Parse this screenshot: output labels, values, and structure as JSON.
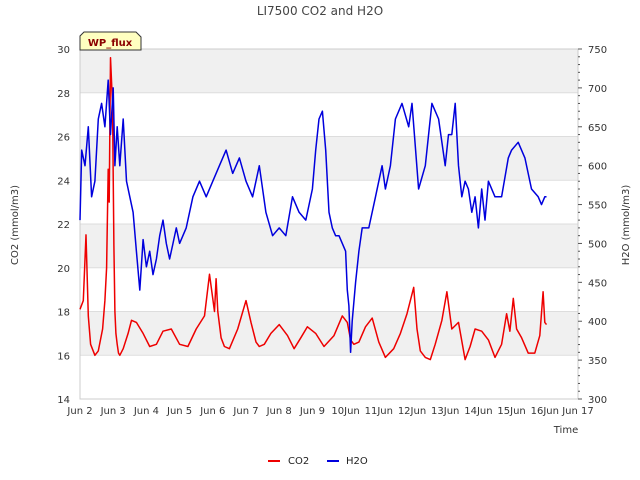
{
  "chart_data": {
    "type": "line",
    "title": "LI7500 CO2 and H2O",
    "xlabel": "Time",
    "ylabel_left": "CO2 (mmol/m3)",
    "ylabel_right": "H2O (mmol/m3)",
    "badge": "WP_flux",
    "x_range": [
      2,
      17
    ],
    "ylim_left": [
      14,
      30
    ],
    "ylim_right": [
      300,
      750
    ],
    "x_ticks": [
      {
        "value": 2,
        "label": "Jun 2"
      },
      {
        "value": 3,
        "label": "Jun 3"
      },
      {
        "value": 4,
        "label": "Jun 4"
      },
      {
        "value": 5,
        "label": "Jun 5"
      },
      {
        "value": 6,
        "label": "Jun 6"
      },
      {
        "value": 7,
        "label": "Jun 7"
      },
      {
        "value": 8,
        "label": "Jun 8"
      },
      {
        "value": 9,
        "label": "Jun 9"
      },
      {
        "value": 10,
        "label": "10Jun"
      },
      {
        "value": 11,
        "label": "11Jun"
      },
      {
        "value": 12,
        "label": "12Jun"
      },
      {
        "value": 13,
        "label": "13Jun"
      },
      {
        "value": 14,
        "label": "14Jun"
      },
      {
        "value": 15,
        "label": "15Jun"
      },
      {
        "value": 16,
        "label": "16Jun"
      },
      {
        "value": 17,
        "label": "Jun 17"
      }
    ],
    "y_left_ticks": [
      14,
      16,
      18,
      20,
      22,
      24,
      26,
      28,
      30
    ],
    "y_right_ticks": [
      300,
      350,
      400,
      450,
      500,
      550,
      600,
      650,
      700,
      750
    ],
    "colors": {
      "co2": "#ee0000",
      "h2o": "#0000dd",
      "band": "#f0f0f0",
      "badge_fill": "#ffffc0"
    },
    "series": [
      {
        "name": "CO2",
        "axis": "left",
        "x": [
          2.0,
          2.1,
          2.18,
          2.25,
          2.32,
          2.45,
          2.55,
          2.68,
          2.75,
          2.8,
          2.85,
          2.88,
          2.92,
          2.98,
          3.02,
          3.05,
          3.08,
          3.12,
          3.16,
          3.2,
          3.3,
          3.45,
          3.55,
          3.7,
          3.9,
          4.1,
          4.3,
          4.5,
          4.75,
          5.0,
          5.25,
          5.5,
          5.75,
          5.9,
          6.05,
          6.1,
          6.15,
          6.25,
          6.35,
          6.5,
          6.75,
          7.0,
          7.15,
          7.3,
          7.4,
          7.55,
          7.75,
          8.0,
          8.25,
          8.45,
          8.65,
          8.85,
          9.1,
          9.35,
          9.65,
          9.9,
          10.05,
          10.15,
          10.25,
          10.4,
          10.6,
          10.8,
          11.0,
          11.2,
          11.45,
          11.65,
          11.85,
          12.05,
          12.15,
          12.25,
          12.4,
          12.55,
          12.7,
          12.9,
          13.05,
          13.2,
          13.4,
          13.6,
          13.75,
          13.9,
          14.1,
          14.3,
          14.5,
          14.7,
          14.85,
          14.95,
          15.05,
          15.15,
          15.3,
          15.5,
          15.7,
          15.85,
          15.95,
          16.0,
          16.05
        ],
        "values": [
          18.1,
          18.5,
          21.5,
          17.8,
          16.5,
          16.0,
          16.2,
          17.2,
          18.5,
          20.0,
          24.5,
          23.0,
          29.6,
          27.5,
          21.0,
          18.0,
          17.0,
          16.5,
          16.1,
          16.0,
          16.3,
          17.0,
          17.6,
          17.5,
          17.0,
          16.4,
          16.5,
          17.1,
          17.2,
          16.5,
          16.4,
          17.2,
          17.8,
          19.7,
          18.0,
          19.5,
          18.0,
          16.8,
          16.4,
          16.3,
          17.2,
          18.5,
          17.5,
          16.6,
          16.4,
          16.5,
          17.0,
          17.4,
          16.9,
          16.3,
          16.8,
          17.3,
          17.0,
          16.4,
          16.9,
          17.8,
          17.5,
          16.7,
          16.5,
          16.6,
          17.3,
          17.7,
          16.6,
          15.9,
          16.3,
          17.0,
          17.9,
          19.1,
          17.2,
          16.2,
          15.9,
          15.8,
          16.5,
          17.6,
          18.9,
          17.2,
          17.5,
          15.8,
          16.4,
          17.2,
          17.1,
          16.7,
          15.9,
          16.5,
          17.9,
          17.1,
          18.6,
          17.2,
          16.8,
          16.1,
          16.1,
          16.9,
          18.9,
          17.5,
          17.4
        ]
      },
      {
        "name": "H2O",
        "axis": "right",
        "x": [
          2.0,
          2.05,
          2.15,
          2.25,
          2.35,
          2.45,
          2.55,
          2.65,
          2.75,
          2.85,
          2.92,
          3.0,
          3.05,
          3.12,
          3.2,
          3.3,
          3.4,
          3.5,
          3.6,
          3.7,
          3.8,
          3.9,
          4.0,
          4.1,
          4.2,
          4.3,
          4.4,
          4.5,
          4.6,
          4.7,
          4.8,
          4.9,
          5.0,
          5.2,
          5.4,
          5.6,
          5.8,
          6.0,
          6.2,
          6.4,
          6.6,
          6.8,
          7.0,
          7.2,
          7.4,
          7.6,
          7.8,
          8.0,
          8.2,
          8.4,
          8.6,
          8.8,
          9.0,
          9.1,
          9.2,
          9.3,
          9.4,
          9.5,
          9.6,
          9.7,
          9.8,
          9.9,
          10.0,
          10.05,
          10.1,
          10.15,
          10.2,
          10.3,
          10.4,
          10.5,
          10.7,
          10.9,
          11.0,
          11.1,
          11.2,
          11.35,
          11.5,
          11.7,
          11.9,
          12.0,
          12.2,
          12.4,
          12.6,
          12.8,
          13.0,
          13.1,
          13.2,
          13.3,
          13.4,
          13.5,
          13.6,
          13.7,
          13.8,
          13.9,
          14.0,
          14.1,
          14.2,
          14.3,
          14.5,
          14.7,
          14.9,
          15.0,
          15.2,
          15.4,
          15.6,
          15.8,
          15.9,
          16.0,
          16.05
        ],
        "values": [
          530,
          620,
          600,
          650,
          560,
          580,
          660,
          680,
          650,
          710,
          640,
          700,
          600,
          650,
          600,
          660,
          580,
          560,
          540,
          490,
          440,
          505,
          470,
          490,
          460,
          480,
          510,
          530,
          500,
          480,
          500,
          520,
          500,
          520,
          560,
          580,
          560,
          580,
          600,
          620,
          590,
          610,
          580,
          560,
          600,
          540,
          510,
          520,
          510,
          560,
          540,
          530,
          570,
          620,
          660,
          670,
          620,
          540,
          520,
          510,
          510,
          500,
          490,
          440,
          420,
          360,
          400,
          450,
          490,
          520,
          520,
          560,
          580,
          600,
          570,
          600,
          660,
          680,
          650,
          680,
          570,
          600,
          680,
          660,
          600,
          640,
          640,
          680,
          600,
          560,
          580,
          570,
          540,
          560,
          520,
          570,
          530,
          580,
          560,
          560,
          610,
          620,
          630,
          610,
          570,
          560,
          550,
          560,
          560
        ]
      }
    ]
  }
}
